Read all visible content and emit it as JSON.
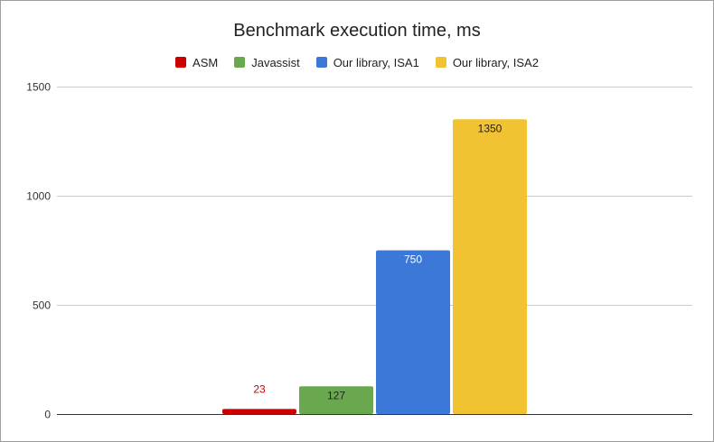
{
  "chart_data": {
    "type": "bar",
    "title": "Benchmark execution time, ms",
    "xlabel": "",
    "ylabel": "",
    "ylim": [
      0,
      1500
    ],
    "yticks": [
      0,
      500,
      1000,
      1500
    ],
    "grid": true,
    "legend_position": "top",
    "series": [
      {
        "name": "ASM",
        "value": 23,
        "color": "#cc0000",
        "label_color": "#cc0000"
      },
      {
        "name": "Javassist",
        "value": 127,
        "color": "#6aa84f",
        "label_color": "#222222"
      },
      {
        "name": "Our library, ISA1",
        "value": 750,
        "color": "#3c78d8",
        "label_color": "#ffffff"
      },
      {
        "name": "Our library, ISA2",
        "value": 1350,
        "color": "#f1c232",
        "label_color": "#222222"
      }
    ]
  }
}
